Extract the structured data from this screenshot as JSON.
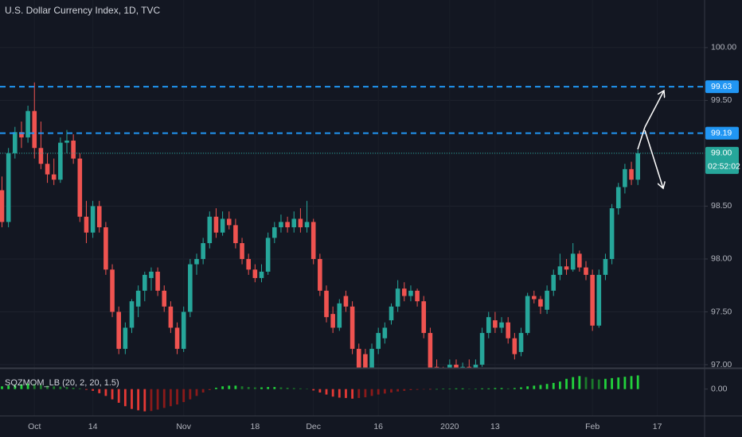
{
  "chart_data": [
    {
      "type": "candlestick",
      "title": "U.S. Dollar Currency Index, 1D, TVC",
      "categories": [
        null,
        null,
        null,
        null,
        null,
        "Oct",
        null,
        null,
        null,
        null,
        null,
        null,
        null,
        null,
        "14",
        null,
        null,
        null,
        null,
        null,
        null,
        null,
        null,
        null,
        null,
        null,
        null,
        null,
        "Nov",
        null,
        null,
        null,
        null,
        null,
        null,
        null,
        null,
        null,
        null,
        "18",
        null,
        null,
        null,
        null,
        null,
        null,
        null,
        null,
        "Dec",
        null,
        null,
        null,
        null,
        null,
        null,
        null,
        null,
        null,
        "16",
        null,
        null,
        null,
        null,
        null,
        null,
        null,
        null,
        null,
        null,
        "2020",
        null,
        null,
        null,
        null,
        null,
        null,
        "13",
        null,
        null,
        null,
        null,
        null,
        null,
        null,
        null,
        null,
        null,
        null,
        null,
        null,
        null,
        "Feb",
        null,
        null,
        null,
        null,
        null,
        null,
        null,
        null,
        null,
        "17"
      ],
      "open": [
        98.65,
        98.35,
        99.0,
        99.2,
        99.15,
        99.4,
        99.05,
        98.9,
        98.8,
        98.75,
        99.1,
        99.12,
        98.95,
        98.4,
        98.25,
        98.5,
        98.3,
        97.9,
        97.5,
        97.15,
        97.35,
        97.55,
        97.7,
        97.82,
        97.88,
        97.7,
        97.55,
        97.35,
        97.15,
        97.5,
        97.95,
        98.0,
        98.15,
        98.4,
        98.25,
        98.38,
        98.32,
        98.15,
        98.0,
        97.9,
        97.82,
        97.88,
        98.2,
        98.3,
        98.35,
        98.3,
        98.38,
        98.3,
        98.35,
        98.0,
        97.7,
        97.48,
        97.35,
        97.65,
        97.55,
        97.15,
        97.1,
        96.95,
        97.15,
        97.25,
        97.42,
        97.55,
        97.72,
        97.65,
        97.7,
        97.6,
        97.3,
        96.98,
        96.92,
        96.9,
        97.0,
        96.92,
        96.98,
        96.95,
        97.0,
        97.3,
        97.42,
        97.35,
        97.4,
        97.25,
        97.12,
        97.3,
        97.65,
        97.62,
        97.52,
        97.7,
        97.85,
        97.93,
        97.9,
        98.05,
        97.92,
        97.85,
        97.37,
        97.85,
        98.0,
        98.48,
        98.68,
        98.85,
        98.75,
        null,
        null,
        null
      ],
      "high": [
        98.78,
        99.05,
        99.25,
        99.3,
        99.45,
        99.67,
        99.3,
        99.0,
        98.95,
        99.15,
        99.22,
        99.18,
        99.0,
        98.55,
        98.55,
        98.55,
        98.35,
        97.95,
        97.55,
        97.4,
        97.62,
        97.75,
        97.88,
        97.92,
        97.92,
        97.75,
        97.6,
        97.4,
        97.55,
        98.0,
        98.05,
        98.2,
        98.45,
        98.48,
        98.45,
        98.45,
        98.38,
        98.2,
        98.05,
        97.95,
        97.95,
        98.25,
        98.35,
        98.42,
        98.4,
        98.45,
        98.48,
        98.55,
        98.38,
        98.05,
        97.75,
        97.55,
        97.62,
        97.7,
        97.6,
        97.2,
        97.15,
        97.2,
        97.35,
        97.4,
        97.58,
        97.8,
        97.78,
        97.75,
        97.72,
        97.65,
        97.35,
        97.05,
        96.98,
        97.05,
        97.05,
        97.02,
        97.05,
        97.05,
        97.35,
        97.5,
        97.5,
        97.45,
        97.45,
        97.3,
        97.35,
        97.68,
        97.7,
        97.65,
        97.75,
        97.9,
        98.05,
        98.0,
        98.15,
        98.08,
        97.98,
        97.9,
        97.9,
        98.05,
        98.52,
        98.72,
        98.9,
        98.92,
        99.03,
        null,
        null,
        null
      ],
      "low": [
        98.3,
        98.3,
        98.95,
        99.05,
        99.1,
        98.95,
        98.85,
        98.72,
        98.7,
        98.72,
        99.0,
        98.9,
        98.35,
        98.15,
        98.2,
        98.25,
        97.85,
        97.45,
        97.1,
        97.1,
        97.3,
        97.45,
        97.6,
        97.7,
        97.65,
        97.5,
        97.3,
        97.1,
        97.12,
        97.45,
        97.85,
        97.95,
        98.1,
        98.2,
        98.22,
        98.28,
        98.1,
        97.95,
        97.85,
        97.78,
        97.78,
        97.85,
        98.15,
        98.25,
        98.25,
        98.25,
        98.25,
        98.25,
        97.95,
        97.65,
        97.4,
        97.3,
        97.32,
        97.5,
        97.1,
        96.9,
        96.9,
        96.9,
        97.1,
        97.2,
        97.38,
        97.5,
        97.6,
        97.6,
        97.55,
        97.25,
        96.9,
        96.88,
        96.85,
        96.85,
        96.88,
        96.85,
        96.9,
        96.9,
        96.98,
        97.25,
        97.3,
        97.3,
        97.2,
        97.05,
        97.08,
        97.28,
        97.58,
        97.48,
        97.48,
        97.65,
        97.8,
        97.85,
        97.88,
        97.88,
        97.8,
        97.32,
        97.35,
        97.8,
        97.95,
        98.42,
        98.62,
        98.7,
        98.7,
        null,
        null,
        null
      ],
      "close": [
        98.35,
        99.0,
        99.2,
        99.15,
        99.4,
        99.05,
        98.9,
        98.8,
        98.75,
        99.1,
        99.12,
        98.95,
        98.4,
        98.25,
        98.5,
        98.3,
        97.9,
        97.5,
        97.15,
        97.35,
        97.6,
        97.7,
        97.85,
        97.88,
        97.7,
        97.55,
        97.35,
        97.15,
        97.5,
        97.95,
        98.0,
        98.15,
        98.4,
        98.25,
        98.38,
        98.32,
        98.15,
        98.0,
        97.9,
        97.82,
        97.88,
        98.2,
        98.3,
        98.35,
        98.3,
        98.38,
        98.3,
        98.35,
        98.0,
        97.7,
        97.45,
        97.35,
        97.58,
        97.55,
        97.15,
        96.95,
        96.95,
        97.15,
        97.3,
        97.35,
        97.55,
        97.72,
        97.65,
        97.7,
        97.6,
        97.3,
        96.95,
        96.92,
        96.9,
        97.0,
        96.92,
        96.98,
        96.95,
        97.0,
        97.3,
        97.45,
        97.35,
        97.4,
        97.25,
        97.1,
        97.3,
        97.65,
        97.62,
        97.55,
        97.7,
        97.85,
        97.93,
        97.9,
        98.05,
        97.92,
        97.85,
        97.37,
        97.85,
        98.0,
        98.48,
        98.68,
        98.85,
        98.75,
        99.0,
        null,
        null,
        null
      ],
      "up_color": "#26a69a",
      "down_color": "#ef5350",
      "ylim": [
        96.97,
        100.45
      ],
      "yticks": [
        {
          "value": 97,
          "label": "97.00"
        },
        {
          "value": 97.5,
          "label": "97.50"
        },
        {
          "value": 98,
          "label": "98.00"
        },
        {
          "value": 98.5,
          "label": "98.50"
        },
        {
          "value": 99,
          "label": "99.00"
        },
        {
          "value": 99.5,
          "label": "99.50"
        },
        {
          "value": 100,
          "label": "100.00"
        }
      ],
      "grid": true,
      "hlines": [
        {
          "value": 99.63,
          "label": "99.63",
          "color": "#2196f3"
        },
        {
          "value": 99.19,
          "label": "99.19",
          "color": "#2196f3"
        }
      ],
      "last_price": {
        "value": 99.0,
        "label": "99.00",
        "countdown": "02:52:02",
        "color": "#26a69a"
      }
    },
    {
      "type": "bar",
      "title": "SQZMOM_LB (20, 2, 20, 1.5)",
      "values": [
        0.08,
        0.1,
        0.12,
        0.14,
        0.16,
        0.15,
        0.12,
        0.1,
        0.08,
        0.07,
        0.06,
        0.04,
        0.02,
        -0.02,
        -0.05,
        -0.12,
        -0.2,
        -0.3,
        -0.4,
        -0.5,
        -0.58,
        -0.62,
        -0.65,
        -0.64,
        -0.6,
        -0.55,
        -0.5,
        -0.45,
        -0.38,
        -0.3,
        -0.2,
        -0.1,
        -0.03,
        0.04,
        0.08,
        0.1,
        0.1,
        0.08,
        0.06,
        0.05,
        0.05,
        0.06,
        0.06,
        0.05,
        0.04,
        0.03,
        0.02,
        0.01,
        -0.04,
        -0.1,
        -0.16,
        -0.22,
        -0.25,
        -0.26,
        -0.28,
        -0.26,
        -0.24,
        -0.2,
        -0.16,
        -0.13,
        -0.1,
        -0.07,
        -0.05,
        -0.03,
        -0.02,
        -0.01,
        -0.01,
        0.0,
        0.01,
        0.01,
        0.02,
        0.02,
        0.01,
        0.01,
        0.02,
        0.02,
        0.03,
        0.03,
        0.02,
        0.03,
        0.05,
        0.08,
        0.1,
        0.12,
        0.15,
        0.18,
        0.22,
        0.3,
        0.35,
        0.38,
        0.35,
        0.3,
        0.28,
        0.3,
        0.32,
        0.34,
        0.36,
        0.38,
        0.4,
        null,
        null,
        null
      ],
      "colors": {
        "up_rising": "#22d13c",
        "up_falling": "#1b7a2b",
        "down_falling": "#e53935",
        "down_rising": "#8b1a1a"
      },
      "ylim": [
        -0.75,
        0.55
      ],
      "yticks": [
        {
          "value": 0,
          "label": "0.00"
        }
      ]
    }
  ]
}
